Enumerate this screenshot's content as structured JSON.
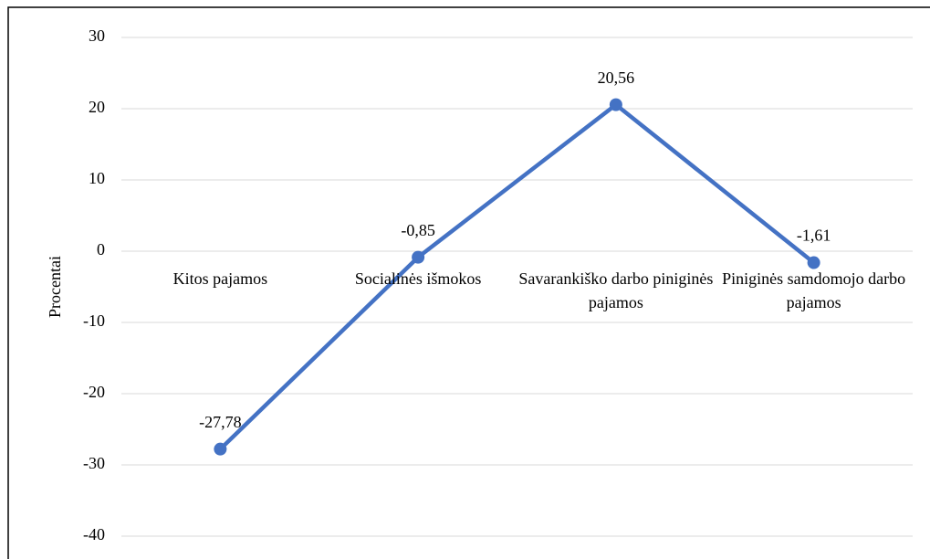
{
  "chart_data": {
    "type": "line",
    "y_label": "Procentai",
    "categories": [
      "Kitos pajamos",
      "Socialinės išmokos",
      "Savarankiško darbo piniginės pajamos",
      "Piniginės samdomojo darbo pajamos"
    ],
    "series": [
      {
        "name": null,
        "color": "#4472c4",
        "values": [
          -27.78,
          -0.85,
          20.56,
          -1.61
        ],
        "value_labels": [
          "-27,78",
          "-0,85",
          "20,56",
          "-1,61"
        ]
      }
    ],
    "ylim": [
      -40,
      30
    ],
    "yticks": [
      -40,
      -30,
      -20,
      -10,
      0,
      10,
      20,
      30
    ],
    "grid": true
  }
}
